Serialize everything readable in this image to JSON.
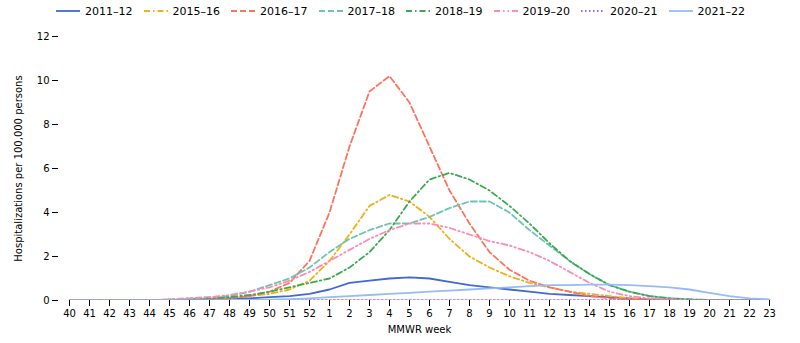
{
  "chart_data": {
    "type": "line",
    "xlabel": "MMWR week",
    "ylabel": "Hospitalizations per 100,000 persons",
    "categories": [
      "40",
      "41",
      "42",
      "43",
      "44",
      "45",
      "46",
      "47",
      "48",
      "49",
      "50",
      "51",
      "52",
      "1",
      "2",
      "3",
      "4",
      "5",
      "6",
      "7",
      "8",
      "9",
      "10",
      "11",
      "12",
      "13",
      "14",
      "15",
      "16",
      "17",
      "18",
      "19",
      "20",
      "21",
      "22",
      "23"
    ],
    "ylim": [
      0,
      12
    ],
    "yticks": [
      0,
      2,
      4,
      6,
      8,
      10,
      12
    ],
    "grid": false,
    "legend": "top",
    "series": [
      {
        "name": "2011–12",
        "line_style": "solid",
        "values": [
          0.0,
          0.0,
          0.0,
          0.0,
          0.0,
          0.0,
          0.05,
          0.05,
          0.1,
          0.1,
          0.15,
          0.2,
          0.3,
          0.5,
          0.8,
          0.9,
          1.0,
          1.05,
          1.0,
          0.85,
          0.7,
          0.6,
          0.5,
          0.4,
          0.3,
          0.25,
          0.2,
          0.15,
          0.1,
          0.05,
          0.05,
          0.02,
          0.0,
          0.0,
          0.0,
          0.0
        ]
      },
      {
        "name": "2015–16",
        "line_style": "dashdot",
        "values": [
          0.0,
          0.0,
          0.0,
          0.0,
          0.0,
          0.05,
          0.05,
          0.1,
          0.15,
          0.2,
          0.3,
          0.5,
          0.9,
          1.8,
          3.0,
          4.3,
          4.8,
          4.5,
          3.8,
          2.8,
          2.0,
          1.5,
          1.1,
          0.8,
          0.6,
          0.4,
          0.3,
          0.2,
          0.1,
          0.05,
          0.02,
          0.0,
          0.0,
          0.0,
          0.0,
          0.0
        ]
      },
      {
        "name": "2016–17",
        "line_style": "dashed",
        "values": [
          0.0,
          0.0,
          0.0,
          0.0,
          0.0,
          0.0,
          0.0,
          0.05,
          0.1,
          0.2,
          0.4,
          0.8,
          1.8,
          4.0,
          7.0,
          9.5,
          10.2,
          9.0,
          7.0,
          5.0,
          3.5,
          2.2,
          1.4,
          0.9,
          0.6,
          0.4,
          0.2,
          0.1,
          0.05,
          0.02,
          0.0,
          0.0,
          0.0,
          0.0,
          0.0,
          0.0
        ]
      },
      {
        "name": "2017–18",
        "line_style": "dashed",
        "values": [
          0.0,
          0.0,
          0.0,
          0.0,
          0.0,
          0.05,
          0.1,
          0.15,
          0.2,
          0.4,
          0.7,
          1.0,
          1.5,
          2.2,
          2.8,
          3.2,
          3.5,
          3.5,
          3.8,
          4.2,
          4.5,
          4.5,
          4.0,
          3.2,
          2.5,
          1.8,
          1.2,
          0.7,
          0.4,
          0.2,
          0.1,
          0.05,
          0.02,
          0.0,
          0.0,
          0.0
        ]
      },
      {
        "name": "2018–19",
        "line_style": "dashdot",
        "values": [
          0.0,
          0.0,
          0.0,
          0.0,
          0.0,
          0.0,
          0.05,
          0.1,
          0.15,
          0.25,
          0.4,
          0.6,
          0.8,
          1.0,
          1.5,
          2.2,
          3.2,
          4.5,
          5.5,
          5.8,
          5.5,
          5.0,
          4.3,
          3.5,
          2.6,
          1.8,
          1.2,
          0.7,
          0.4,
          0.2,
          0.1,
          0.05,
          0.02,
          0.0,
          0.0,
          0.0
        ]
      },
      {
        "name": "2019–20",
        "line_style": "dashdotdot",
        "values": [
          0.0,
          0.0,
          0.0,
          0.0,
          0.0,
          0.05,
          0.1,
          0.15,
          0.25,
          0.4,
          0.6,
          0.9,
          1.3,
          1.8,
          2.3,
          2.8,
          3.2,
          3.5,
          3.5,
          3.3,
          3.0,
          2.7,
          2.5,
          2.2,
          1.8,
          1.3,
          0.8,
          0.4,
          0.2,
          0.1,
          0.05,
          0.0,
          0.0,
          0.0,
          0.0,
          0.0
        ]
      },
      {
        "name": "2020–21",
        "line_style": "dotted",
        "values": [
          0.0,
          0.0,
          0.0,
          0.0,
          0.0,
          0.0,
          0.0,
          0.0,
          0.02,
          0.02,
          0.02,
          0.02,
          0.02,
          0.02,
          0.02,
          0.02,
          0.02,
          0.02,
          0.02,
          0.02,
          0.02,
          0.02,
          0.02,
          0.02,
          0.02,
          0.02,
          0.02,
          0.02,
          0.02,
          0.02,
          0.0,
          0.0,
          0.0,
          0.0,
          0.0,
          0.0
        ]
      },
      {
        "name": "2021–22",
        "line_style": "solid",
        "values": [
          0.0,
          0.0,
          0.0,
          0.0,
          0.0,
          0.0,
          0.0,
          0.0,
          0.0,
          0.02,
          0.04,
          0.06,
          0.1,
          0.15,
          0.2,
          0.25,
          0.3,
          0.35,
          0.4,
          0.45,
          0.5,
          0.55,
          0.6,
          0.65,
          0.7,
          0.7,
          0.72,
          0.72,
          0.7,
          0.65,
          0.6,
          0.5,
          0.35,
          0.2,
          0.1,
          0.05
        ]
      }
    ]
  }
}
